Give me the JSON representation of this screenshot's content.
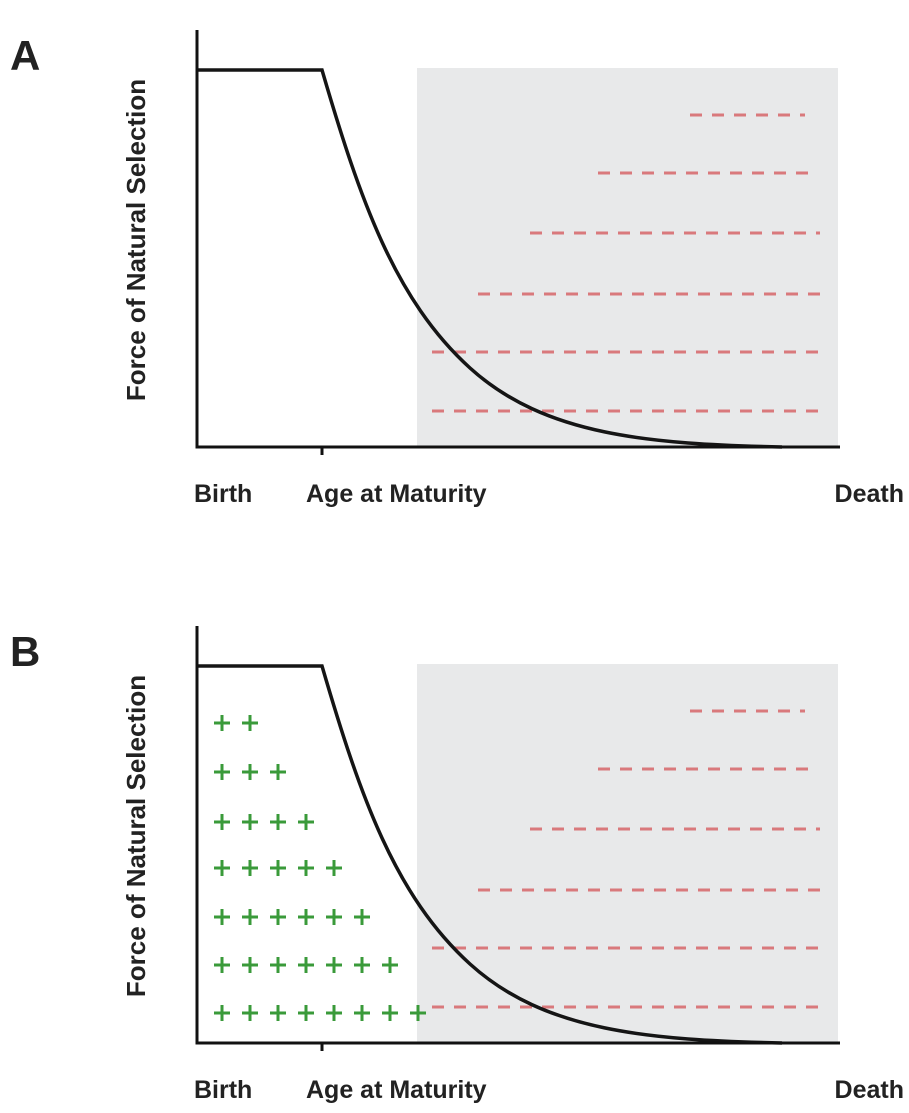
{
  "panels": [
    {
      "label": "A",
      "y_label": "Force of Natural Selection",
      "x_labels": [
        "Birth",
        "Age at Maturity",
        "Death"
      ]
    },
    {
      "label": "B",
      "y_label": "Force of Natural Selection",
      "x_labels": [
        "Birth",
        "Age at Maturity",
        "Death"
      ]
    }
  ]
}
